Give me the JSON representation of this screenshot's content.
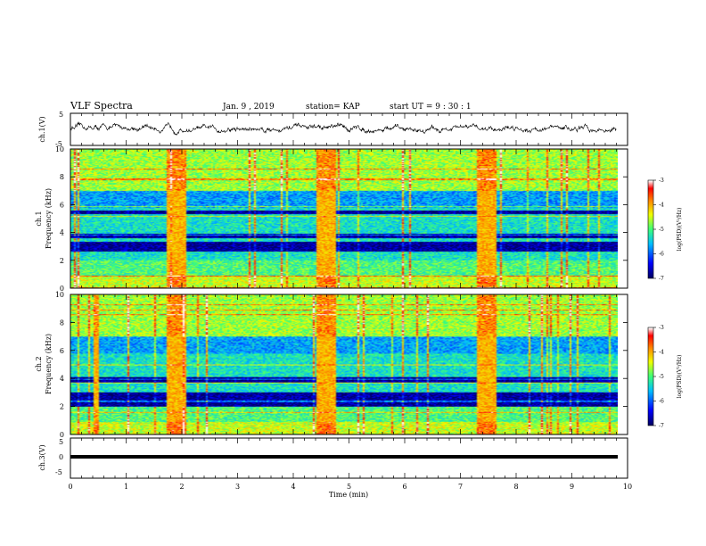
{
  "header": {
    "title": "VLF Spectra",
    "date": "Jan. 9 , 2019",
    "station": "station= KAP",
    "start": "start UT = 9 : 30 : 1"
  },
  "chart_data": [
    {
      "type": "line",
      "panel": "ch1-waveform",
      "ylabel": "ch.1(V)",
      "ylim": [
        -5,
        5
      ],
      "yticks": [
        "5",
        "-5"
      ],
      "x_range_min": [
        0,
        9.8
      ],
      "series": [
        {
          "values": "noisy signal oscillating between about -1 and 1.5 V"
        }
      ]
    },
    {
      "type": "heatmap",
      "panel": "ch1-spectrogram",
      "ylabel": "ch.1",
      "ylabel2": "Frequency (kHz)",
      "ylim": [
        0,
        10
      ],
      "yticks": [
        "0",
        "2",
        "4",
        "6",
        "8",
        "10"
      ],
      "colorbar": {
        "label": "log(PSD)(V²/Hz)",
        "range": [
          -7,
          -3
        ],
        "ticks": [
          "-3",
          "-4",
          "-5",
          "-6",
          "-7"
        ],
        "colormap": [
          "#000080",
          "#0000ff",
          "#00c0ff",
          "#40ff80",
          "#ffff00",
          "#ff8000",
          "#ff0000",
          "#ffffff"
        ]
      },
      "bright_bursts_min": [
        [
          1.7,
          2.05
        ],
        [
          4.4,
          4.75
        ],
        [
          7.3,
          7.65
        ]
      ],
      "dark_bands_khz": [
        [
          2.6,
          3.3
        ],
        [
          3.6,
          3.9
        ],
        [
          5.3,
          5.6
        ]
      ]
    },
    {
      "type": "heatmap",
      "panel": "ch2-spectrogram",
      "ylabel": "ch.2",
      "ylabel2": "Frequency (kHz)",
      "ylim": [
        0,
        10
      ],
      "yticks": [
        "0",
        "2",
        "4",
        "6",
        "8",
        "10"
      ],
      "colorbar": {
        "label": "log(PSD)(V²/Hz)",
        "range": [
          -7,
          -3
        ],
        "ticks": [
          "-3",
          "-4",
          "-5",
          "-6",
          "-7"
        ],
        "colormap": [
          "#000080",
          "#0000ff",
          "#00c0ff",
          "#40ff80",
          "#ffff00",
          "#ff8000",
          "#ff0000",
          "#ffffff"
        ]
      },
      "bright_bursts_min": [
        [
          0.4,
          0.5
        ],
        [
          1.7,
          2.05
        ],
        [
          4.4,
          4.75
        ],
        [
          7.3,
          7.65
        ]
      ],
      "dark_bands_khz": [
        [
          2.0,
          3.0
        ],
        [
          3.7,
          4.1
        ]
      ]
    },
    {
      "type": "line",
      "panel": "ch3-waveform",
      "ylabel": "ch.3(V)",
      "ylim": [
        -5,
        5
      ],
      "yticks": [
        "5",
        "0",
        "-5"
      ],
      "series": [
        {
          "values": "flat line at 0 V"
        }
      ]
    }
  ],
  "xaxis": {
    "label": "Time (min)",
    "ticks": [
      "0",
      "1",
      "2",
      "3",
      "4",
      "5",
      "6",
      "7",
      "8",
      "9",
      "10"
    ],
    "range": [
      0,
      10
    ],
    "data_extent": [
      0,
      9.8
    ]
  }
}
